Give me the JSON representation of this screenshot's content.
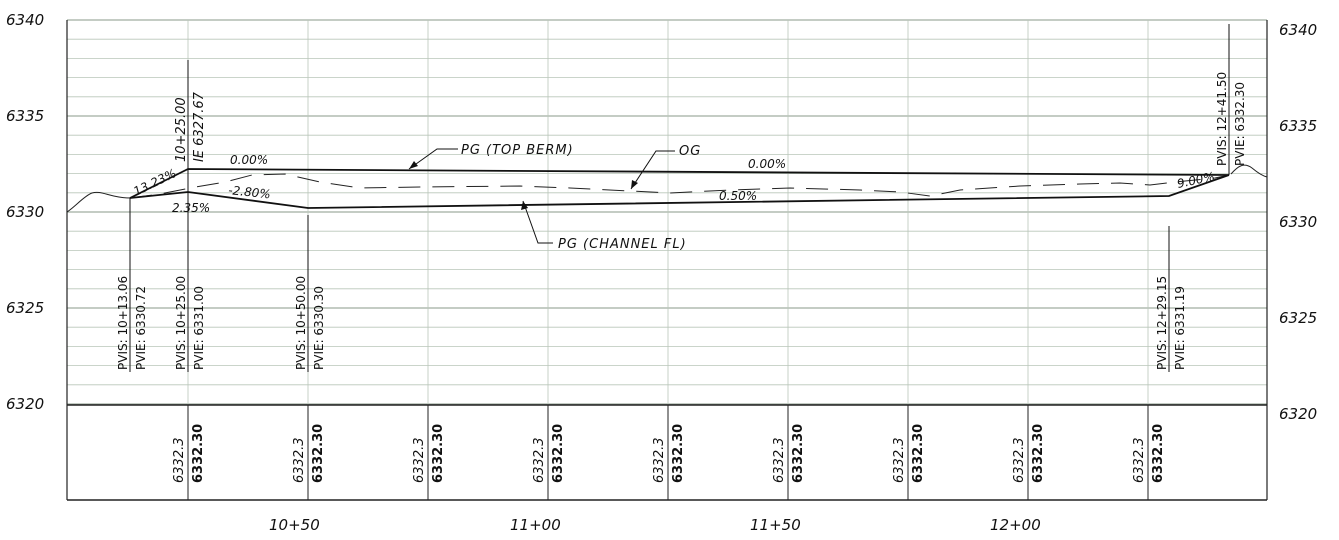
{
  "elevation_labels": [
    "6340",
    "6335",
    "6330",
    "6325",
    "6320"
  ],
  "station_labels": [
    "10+50",
    "11+00",
    "11+50",
    "12+00"
  ],
  "annotations": {
    "top_berm": "PG (TOP BERM)",
    "og": "OG",
    "channel_fl": "PG (CHANNEL FL)"
  },
  "grades": {
    "g_13_23": "13.23%",
    "g_0_00_a": "0.00%",
    "g_0_00_b": "0.00%",
    "g_neg_2_80": "-2.80%",
    "g_2_35": "2.35%",
    "g_0_50": "0.50%",
    "g_9_00": "9.00%"
  },
  "ie_label": {
    "station": "10+25.00",
    "elevation": "IE 6327.67"
  },
  "pvi_labels": [
    {
      "station": "PVIS: 10+13.06",
      "elevation": "PVIE: 6330.72"
    },
    {
      "station": "PVIS: 10+25.00",
      "elevation": "PVIE: 6331.00"
    },
    {
      "station": "PVIS: 10+50.00",
      "elevation": "PVIE: 6330.30"
    },
    {
      "station": "PVIS: 12+29.15",
      "elevation": "PVIE: 6331.19"
    },
    {
      "station": "PVIS: 12+41.50",
      "elevation": "PVIE: 6332.30"
    }
  ],
  "table_cells": [
    {
      "existing": "6332.3",
      "proposed": "6332.30"
    },
    {
      "existing": "6332.3",
      "proposed": "6332.30"
    },
    {
      "existing": "6332.3",
      "proposed": "6332.30"
    },
    {
      "existing": "6332.3",
      "proposed": "6332.30"
    },
    {
      "existing": "6332.3",
      "proposed": "6332.30"
    },
    {
      "existing": "6332.3",
      "proposed": "6332.30"
    },
    {
      "existing": "6332.3",
      "proposed": "6332.30"
    },
    {
      "existing": "6332.3",
      "proposed": "6332.30"
    },
    {
      "existing": "6332.3",
      "proposed": "6332.30"
    }
  ]
}
